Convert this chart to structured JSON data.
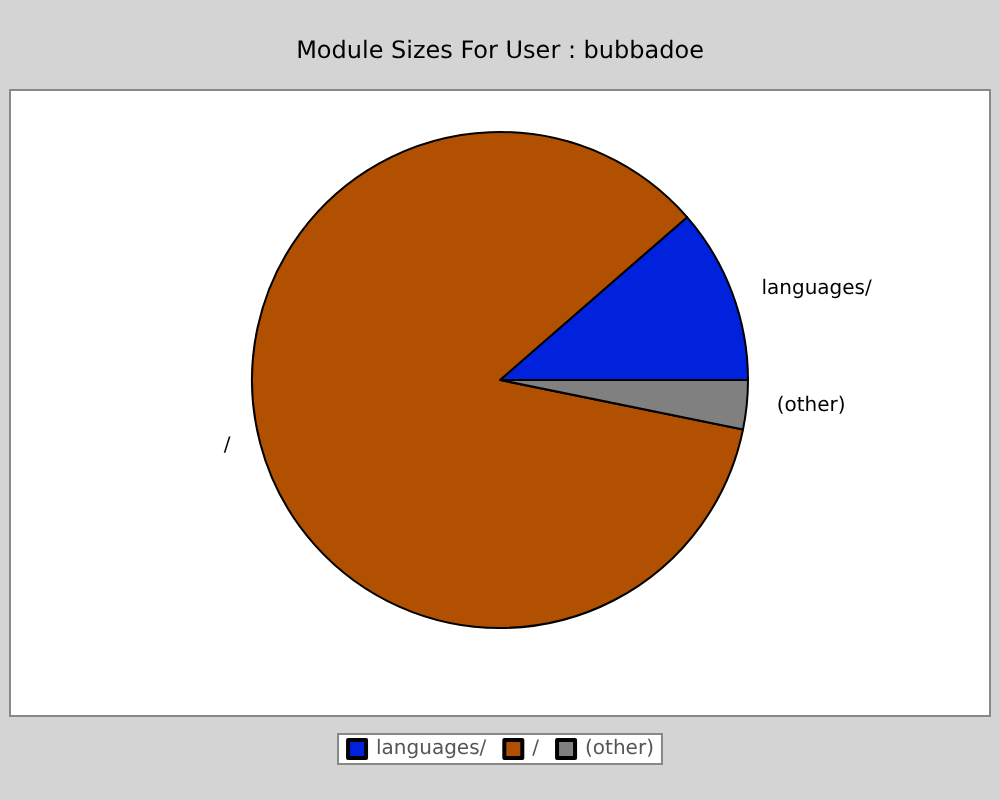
{
  "chart_data": {
    "type": "pie",
    "subtitle": "Module Sizes For User : bubbadoe",
    "categories": [
      "languages/",
      "/",
      "(other)"
    ],
    "values": [
      11.4,
      85.4,
      3.2
    ],
    "colors": [
      "#0022dd",
      "#b05000",
      "#808080"
    ],
    "legend": "bottom"
  }
}
